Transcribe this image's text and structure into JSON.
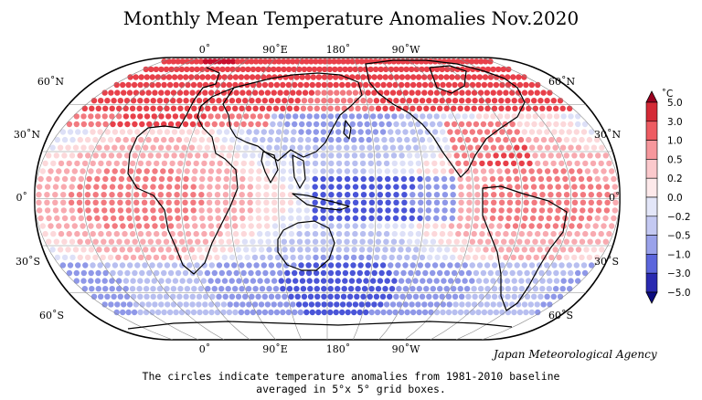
{
  "title": "Monthly Mean Temperature Anomalies Nov.2020",
  "credit": "Japan Meteorological Agency",
  "caption": {
    "line1": "The circles indicate temperature anomalies from 1981-2010 baseline",
    "line2": "averaged in 5°x 5° grid boxes."
  },
  "top_lon_labels": [
    "0˚",
    "90˚E",
    "180˚",
    "90˚W"
  ],
  "bottom_lon_labels": [
    "0˚",
    "90˚E",
    "180˚",
    "90˚W"
  ],
  "left_lat_labels": [
    "60˚N",
    "30˚N",
    "0˚",
    "30˚S",
    "60˚S"
  ],
  "right_lat_labels": [
    "60˚N",
    "30˚N",
    "0˚",
    "30˚S",
    "60˚S"
  ],
  "colorbar": {
    "unit": "˚C",
    "labels": [
      "5.0",
      "3.0",
      "1.0",
      "0.5",
      "0.2",
      "0.0",
      "−0.2",
      "−0.5",
      "−1.0",
      "−3.0",
      "−5.0"
    ],
    "colors": [
      "#c8102e",
      "#e8404a",
      "#f27a80",
      "#f8aab0",
      "#fcd8da",
      "#ffffff",
      "#dde0f7",
      "#b8bff0",
      "#8f98e8",
      "#4a55d8",
      "#1a1aa0"
    ]
  }
}
